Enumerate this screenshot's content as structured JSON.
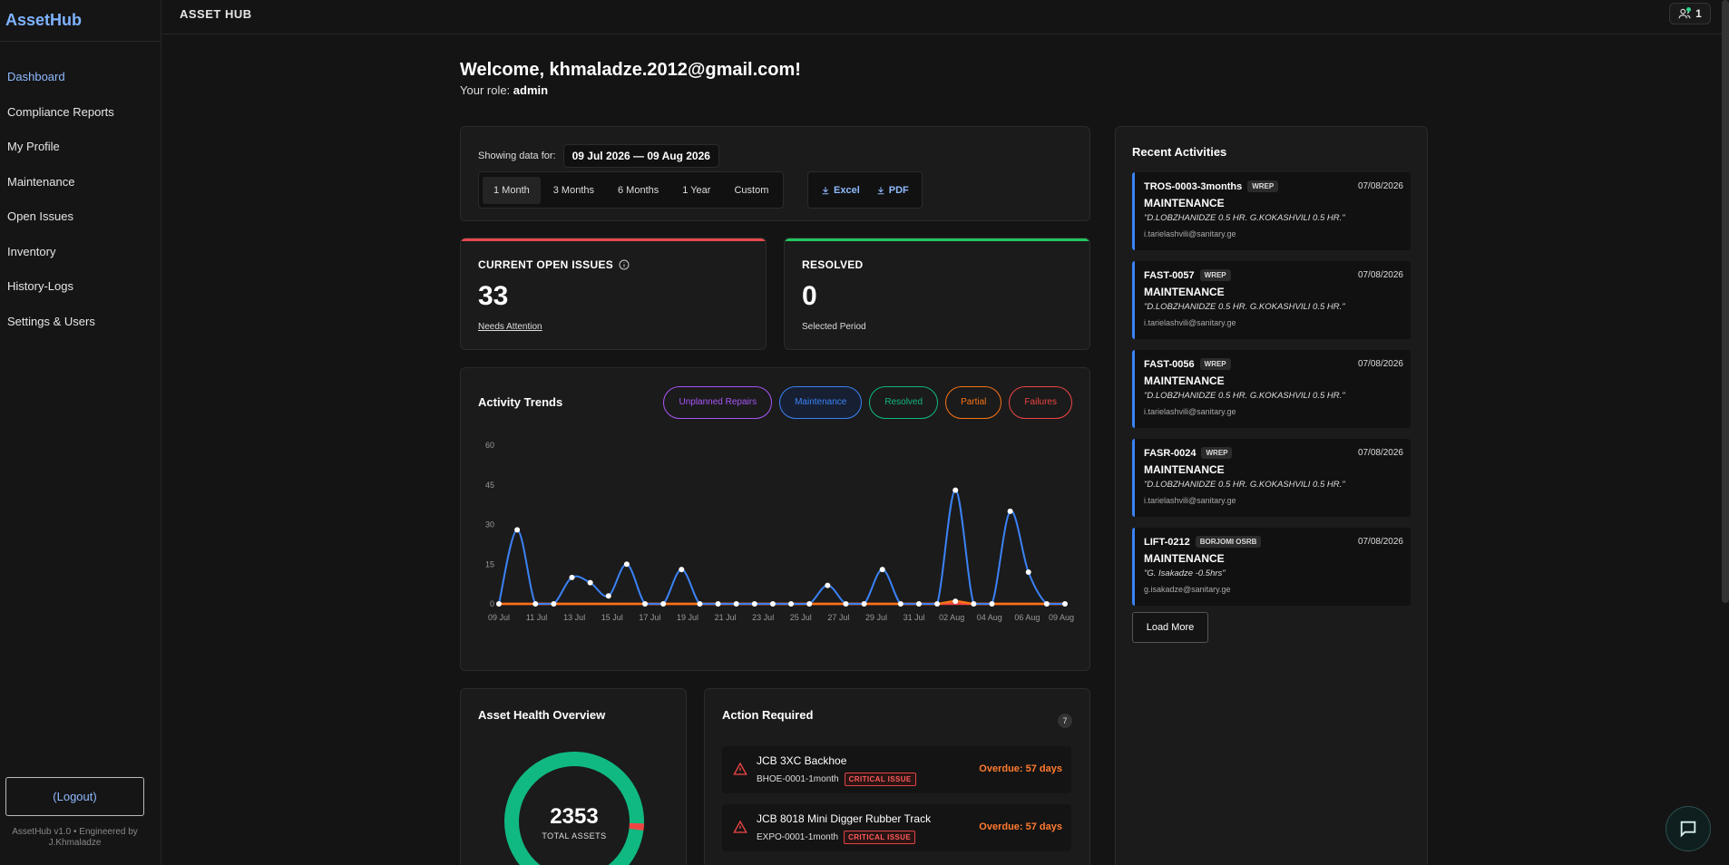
{
  "app": {
    "brand": "AssetHub",
    "topbar_title": "ASSET HUB",
    "online_count": "1",
    "version_note": "AssetHub v1.0 • Engineered by J.Khmaladze"
  },
  "sidebar": {
    "items": [
      {
        "label": "Dashboard",
        "active": true
      },
      {
        "label": "Compliance Reports"
      },
      {
        "label": "My Profile"
      },
      {
        "label": "Maintenance"
      },
      {
        "label": "Open Issues"
      },
      {
        "label": "Inventory"
      },
      {
        "label": "History-Logs"
      },
      {
        "label": "Settings & Users"
      }
    ],
    "logout_label": "(Logout)"
  },
  "welcome": {
    "title": "Welcome, khmaladze.2012@gmail.com!",
    "role_prefix": "Your role:",
    "role": "admin"
  },
  "filters": {
    "showing_label": "Showing data for:",
    "range": "09 Jul 2026 — 09 Aug 2026",
    "periods": [
      "1 Month",
      "3 Months",
      "6 Months",
      "1 Year",
      "Custom"
    ],
    "active_period": "1 Month",
    "exports": [
      "Excel",
      "PDF"
    ]
  },
  "stats": {
    "open_issues": {
      "label": "CURRENT OPEN ISSUES",
      "value": "33",
      "sub": "Needs Attention",
      "color": "#e5484d"
    },
    "resolved": {
      "label": "RESOLVED",
      "value": "0",
      "sub": "Selected Period",
      "color": "#22c55e"
    }
  },
  "chart_data": {
    "type": "line",
    "title": "Activity Trends",
    "legend": [
      {
        "name": "Unplanned Repairs",
        "color": "#a855f7"
      },
      {
        "name": "Maintenance",
        "color": "#3b82f6"
      },
      {
        "name": "Resolved",
        "color": "#10b981"
      },
      {
        "name": "Partial",
        "color": "#f97316"
      },
      {
        "name": "Failures",
        "color": "#ef4444"
      }
    ],
    "ylim": [
      0,
      60
    ],
    "yticks": [
      "60",
      "45",
      "30",
      "15",
      "0"
    ],
    "xtick_labels": [
      "09 Jul",
      "11 Jul",
      "13 Jul",
      "15 Jul",
      "17 Jul",
      "19 Jul",
      "21 Jul",
      "23 Jul",
      "25 Jul",
      "27 Jul",
      "29 Jul",
      "31 Jul",
      "02 Aug",
      "04 Aug",
      "06 Aug",
      "09 Aug"
    ],
    "series": [
      {
        "name": "Maintenance",
        "color": "#3b82f6",
        "values": [
          0,
          28,
          0,
          0,
          10,
          8,
          3,
          15,
          0,
          0,
          13,
          0,
          0,
          0,
          0,
          0,
          0,
          0,
          7,
          0,
          0,
          13,
          0,
          0,
          0,
          43,
          0,
          0,
          35,
          12,
          0,
          0
        ]
      },
      {
        "name": "Partial",
        "color": "#f97316",
        "values": [
          0,
          0,
          0,
          0,
          0,
          0,
          0,
          0,
          0,
          0,
          0,
          0,
          0,
          0,
          0,
          0,
          0,
          0,
          0,
          0,
          0,
          0,
          0,
          0,
          0,
          1,
          0,
          0,
          0,
          0,
          0,
          0
        ]
      },
      {
        "name": "Failures",
        "color": "#ef4444",
        "values": [
          0,
          0,
          0,
          0,
          0,
          0,
          0,
          0,
          0,
          0,
          0,
          0,
          0,
          0,
          0,
          0,
          0,
          0,
          0,
          0,
          0,
          0,
          0,
          0,
          0,
          0,
          0,
          0,
          0,
          0,
          0,
          0
        ]
      }
    ]
  },
  "health": {
    "title": "Asset Health Overview",
    "total": "2353",
    "total_label": "TOTAL ASSETS",
    "healthy_color": "#10b981",
    "issue_color": "#ef4444"
  },
  "actions": {
    "title": "Action Required",
    "count": "7",
    "items": [
      {
        "name": "JCB 3XC Backhoe",
        "code": "BHOE-0001-1month",
        "badge": "CRITICAL ISSUE",
        "due": "Overdue: 57 days"
      },
      {
        "name": "JCB 8018 Mini Digger Rubber Track",
        "code": "EXPO-0001-1month",
        "badge": "CRITICAL ISSUE",
        "due": "Overdue: 57 days"
      }
    ]
  },
  "recent": {
    "title": "Recent Activities",
    "load_more": "Load More",
    "items": [
      {
        "code": "TROS-0003-3months",
        "tag": "WREP",
        "date": "07/08/2026",
        "type": "MAINTENANCE",
        "desc": "\"D.LOBZHANIDZE 0.5 HR. G.KOKASHVILI 0.5 HR.\"",
        "user": "i.tarielashvili@sanitary.ge"
      },
      {
        "code": "FAST-0057",
        "tag": "WREP",
        "date": "07/08/2026",
        "type": "MAINTENANCE",
        "desc": "\"D.LOBZHANIDZE 0.5 HR. G.KOKASHVILI 0.5 HR.\"",
        "user": "i.tarielashvili@sanitary.ge"
      },
      {
        "code": "FAST-0056",
        "tag": "WREP",
        "date": "07/08/2026",
        "type": "MAINTENANCE",
        "desc": "\"D.LOBZHANIDZE 0.5 HR. G.KOKASHVILI 0.5 HR.\"",
        "user": "i.tarielashvili@sanitary.ge"
      },
      {
        "code": "FASR-0024",
        "tag": "WREP",
        "date": "07/08/2026",
        "type": "MAINTENANCE",
        "desc": "\"D.LOBZHANIDZE 0.5 HR. G.KOKASHVILI 0.5 HR.\"",
        "user": "i.tarielashvili@sanitary.ge"
      },
      {
        "code": "LIFT-0212",
        "tag": "BORJOMI OSRB",
        "date": "07/08/2026",
        "type": "MAINTENANCE",
        "desc": "\"G. Isakadze -0.5hrs\"",
        "user": "g.isakadze@sanitary.ge"
      }
    ]
  }
}
